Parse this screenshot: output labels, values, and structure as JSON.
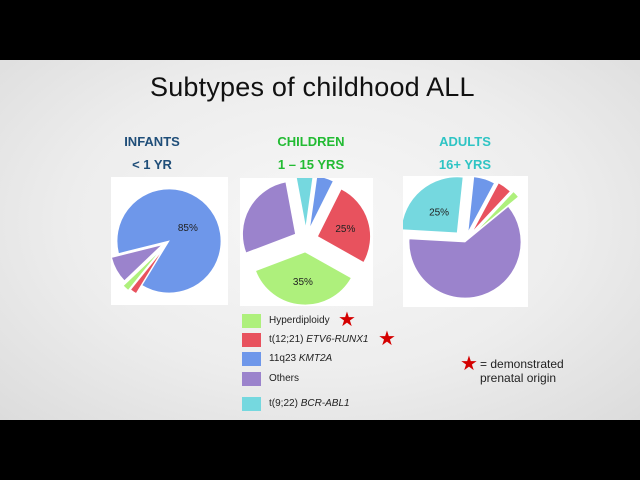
{
  "title": "Subtypes of childhood ALL",
  "colors": {
    "hyperdiploidy": "#aef07c",
    "etv6": "#e8525e",
    "kmt2a": "#6e97ea",
    "others": "#9b83cc",
    "bcr_abl1": "#75d8df",
    "star": "#d40000"
  },
  "columns": [
    {
      "heading": "INFANTS",
      "subheading": "< 1 YR",
      "color": "#1f4e79"
    },
    {
      "heading": "CHILDREN",
      "subheading": "1 – 15 YRS",
      "color": "#22bb33"
    },
    {
      "heading": "ADULTS",
      "subheading": "16+ YRS",
      "color": "#2ec4c4"
    }
  ],
  "legend": [
    {
      "key": "hyperdiploidy",
      "plain": "Hyperdiploidy",
      "italic": "",
      "star": true
    },
    {
      "key": "etv6",
      "plain": "t(12;21) ",
      "italic": "ETV6-RUNX1",
      "star": true
    },
    {
      "key": "kmt2a",
      "plain": "11q23 ",
      "italic": "KMT2A",
      "star": false
    },
    {
      "key": "others",
      "plain": "Others",
      "italic": "",
      "star": false
    },
    {
      "key": "bcr_abl1",
      "plain": "t(9;22) ",
      "italic": "BCR-ABL1",
      "star": false
    }
  ],
  "note": {
    "star_icon": "red-star-icon",
    "line1": "= demonstrated",
    "line2": "prenatal origin"
  },
  "chart_data": [
    {
      "type": "pie",
      "title": "INFANTS < 1 YR",
      "slices": [
        {
          "key": "kmt2a",
          "value": 85,
          "label": "85%"
        },
        {
          "key": "etv6",
          "value": 2,
          "label": ""
        },
        {
          "key": "hyperdiploidy",
          "value": 2,
          "label": ""
        },
        {
          "key": "others",
          "value": 8,
          "label": ""
        }
      ]
    },
    {
      "type": "pie",
      "title": "CHILDREN 1 – 15 YRS",
      "slices": [
        {
          "key": "kmt2a",
          "value": 5,
          "label": ""
        },
        {
          "key": "etv6",
          "value": 25,
          "label": "25%"
        },
        {
          "key": "hyperdiploidy",
          "value": 35,
          "label": "35%"
        },
        {
          "key": "others",
          "value": 27,
          "label": ""
        },
        {
          "key": "bcr_abl1",
          "value": 5,
          "label": ""
        }
      ]
    },
    {
      "type": "pie",
      "title": "ADULTS 16+ YRS",
      "slices": [
        {
          "key": "kmt2a",
          "value": 6,
          "label": ""
        },
        {
          "key": "etv6",
          "value": 4,
          "label": ""
        },
        {
          "key": "hyperdiploidy",
          "value": 2,
          "label": ""
        },
        {
          "key": "others",
          "value": 60,
          "label": ""
        },
        {
          "key": "bcr_abl1",
          "value": 25,
          "label": "25%"
        }
      ]
    }
  ]
}
